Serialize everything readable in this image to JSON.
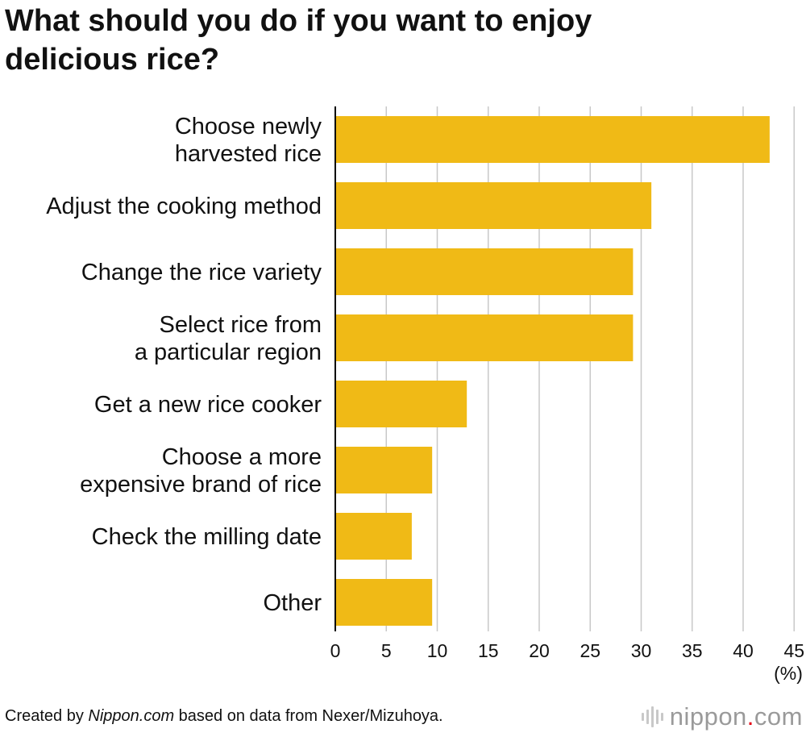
{
  "title": "What should you do if you want to enjoy delicious rice?",
  "footer": {
    "prefix": "Created by ",
    "source_name": "Nippon.com",
    "suffix": " based on data from Nexer/Mizuhoya."
  },
  "logo": {
    "text_before": "nippon",
    "dot": ".",
    "text_after": "com"
  },
  "colors": {
    "bar": "#F0BA16",
    "grid": "#c8c8c8",
    "axis": "#000000"
  },
  "chart_data": {
    "type": "bar",
    "orientation": "horizontal",
    "title": "What should you do if you want to enjoy delicious rice?",
    "categories": [
      [
        "Choose newly",
        "harvested rice"
      ],
      [
        "Adjust the cooking method"
      ],
      [
        "Change the rice variety"
      ],
      [
        "Select rice from",
        "a particular region"
      ],
      [
        "Get a new rice cooker"
      ],
      [
        "Choose a more",
        "expensive brand of rice"
      ],
      [
        "Check the milling date"
      ],
      [
        "Other"
      ]
    ],
    "values": [
      42.6,
      31.0,
      29.2,
      29.2,
      12.9,
      9.5,
      7.5,
      9.5
    ],
    "xlim": [
      0,
      45
    ],
    "xticks": [
      "0",
      "5",
      "10",
      "15",
      "20",
      "25",
      "30",
      "35",
      "40",
      "45"
    ],
    "unit": "(%)",
    "grid": "vertical"
  }
}
